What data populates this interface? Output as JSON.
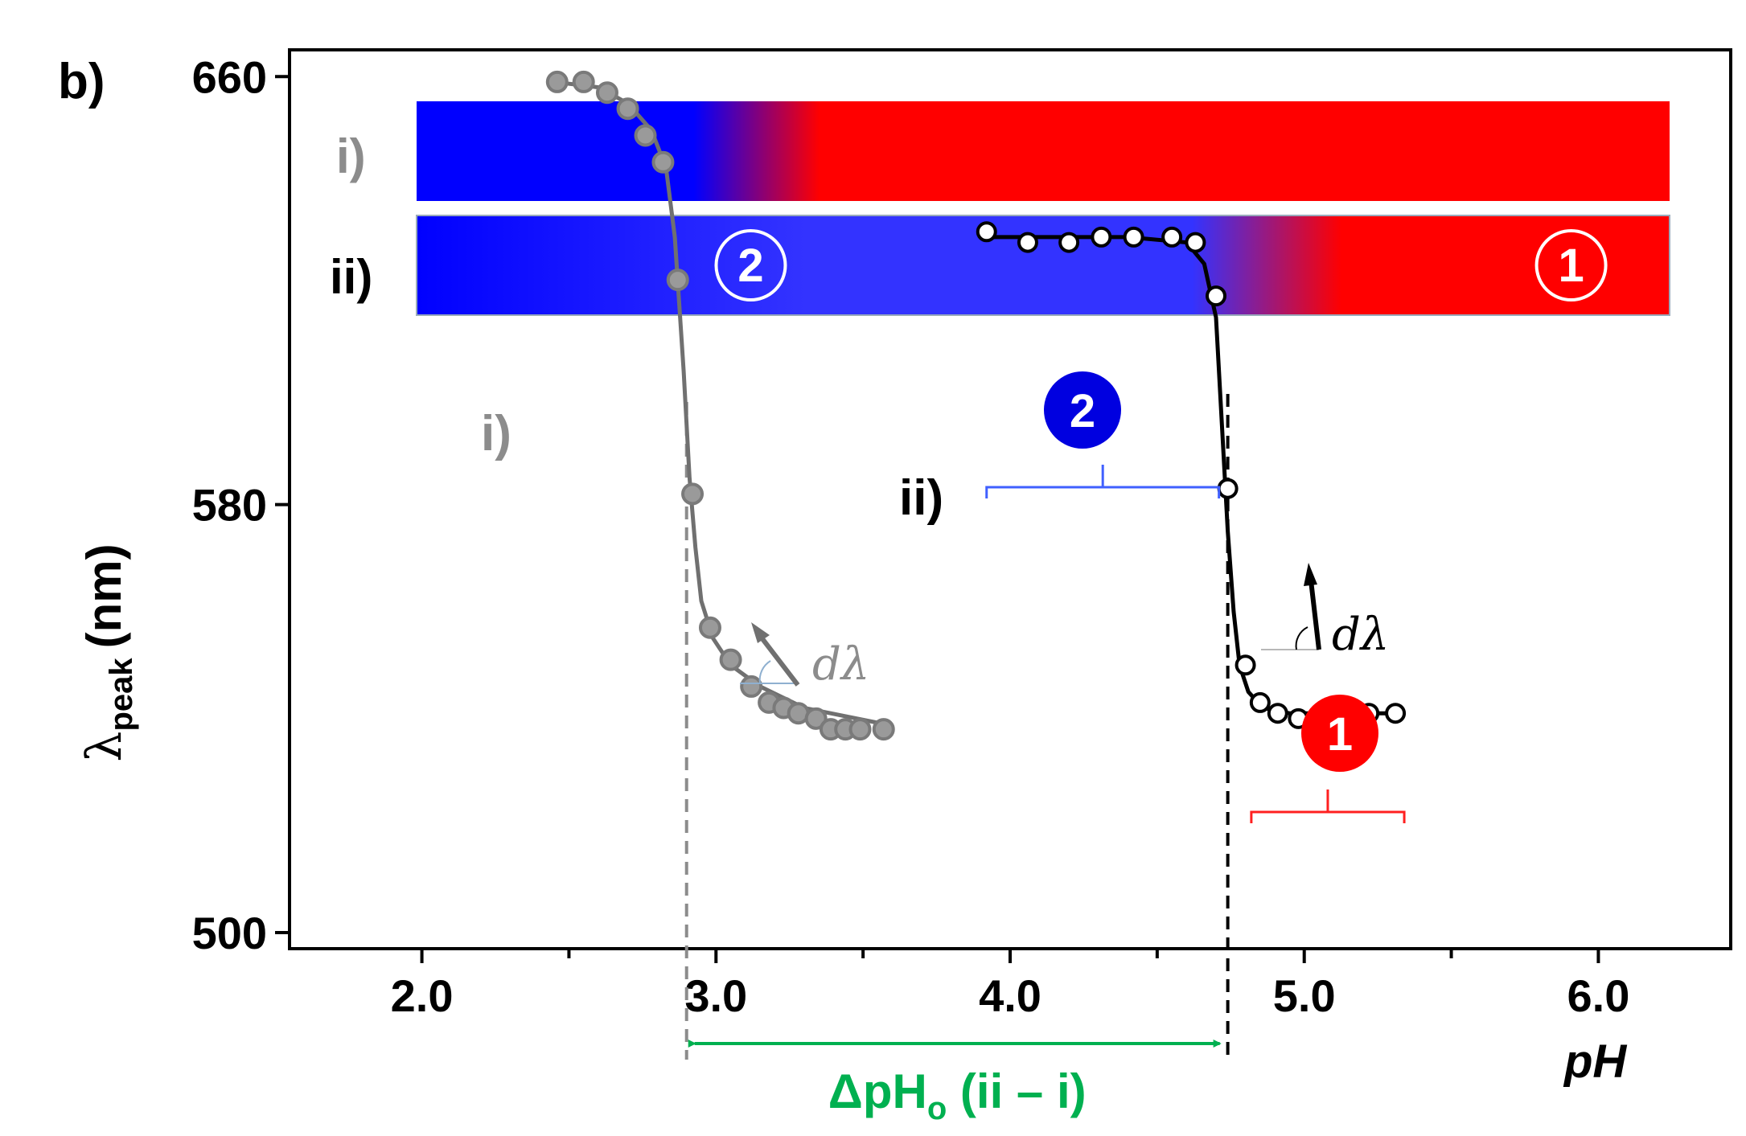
{
  "panel_label": "b)",
  "colors": {
    "blue": "#0000ff",
    "blue_light": "#3333ff",
    "red": "#ff0000",
    "gray": "#8c8c8c",
    "black": "#000000",
    "green": "#00b050",
    "bracket_blue": "#4060ff",
    "bracket_red": "#ff2020"
  },
  "color_bars": [
    {
      "label": "i)",
      "label_color": "#8c8c8c",
      "blue_until_ph": 2.93,
      "red_from_ph": 3.35
    },
    {
      "label": "ii)",
      "label_color": "#000000",
      "blue_until_ph": 4.6,
      "red_from_ph": 5.1,
      "badges": [
        {
          "text": "2",
          "ph": 3.12
        },
        {
          "text": "1",
          "ph": 5.87
        }
      ]
    }
  ],
  "chart_data": {
    "type": "scatter",
    "title": "",
    "ylabel_main": "λ",
    "ylabel_sub": "peak",
    "ylabel_unit": "(nm)",
    "xlabel": "pH",
    "xlim": [
      1.55,
      6.45
    ],
    "ylim": [
      497,
      665
    ],
    "x_ticks": [
      2.0,
      3.0,
      4.0,
      5.0,
      6.0
    ],
    "x_tick_labels": [
      "2.0",
      "3.0",
      "4.0",
      "5.0",
      "6.0"
    ],
    "x_minor_ticks": [
      2.5,
      3.5,
      4.5,
      5.5
    ],
    "y_ticks": [
      500,
      580,
      660
    ],
    "y_tick_labels": [
      "500",
      "580",
      "660"
    ],
    "series": [
      {
        "name": "i)",
        "color": "#8c8c8c",
        "marker": "filled",
        "x": [
          2.46,
          2.55,
          2.63,
          2.7,
          2.76,
          2.82,
          2.87,
          2.92,
          2.98,
          3.05,
          3.12,
          3.18,
          3.23,
          3.28,
          3.34,
          3.39,
          3.44,
          3.49,
          3.57
        ],
        "y": [
          659,
          659,
          657,
          654,
          649,
          644,
          622,
          582,
          557,
          551,
          546,
          543,
          542,
          541,
          540,
          538,
          538,
          538,
          538
        ],
        "fit_x": [
          2.45,
          2.6,
          2.7,
          2.78,
          2.83,
          2.86,
          2.89,
          2.91,
          2.93,
          2.95,
          2.99,
          3.05,
          3.15,
          3.3,
          3.57
        ],
        "fit_y": [
          659,
          658,
          655,
          650,
          643,
          630,
          605,
          585,
          572,
          562,
          555,
          550,
          546,
          542,
          539
        ],
        "annotation": "i)",
        "midpoint_ph": 2.9
      },
      {
        "name": "ii)",
        "color": "#000000",
        "marker": "open",
        "x": [
          3.92,
          4.06,
          4.2,
          4.31,
          4.42,
          4.55,
          4.63,
          4.7,
          4.74,
          4.8,
          4.85,
          4.91,
          4.98,
          5.06,
          5.13,
          5.22,
          5.31
        ],
        "y": [
          631,
          629,
          629,
          630,
          630,
          630,
          629,
          619,
          583,
          550,
          543,
          541,
          540,
          541,
          541,
          541,
          541
        ],
        "fit_x": [
          3.92,
          4.4,
          4.6,
          4.66,
          4.7,
          4.72,
          4.74,
          4.76,
          4.78,
          4.81,
          4.86,
          4.95,
          5.31
        ],
        "fit_y": [
          630,
          630,
          629,
          625,
          615,
          595,
          575,
          560,
          550,
          545,
          542,
          541,
          541
        ],
        "annotation": "ii)",
        "midpoint_ph": 4.74
      }
    ],
    "annotations": {
      "dlambda": "dλ",
      "delta_ph_main": "ΔpH",
      "delta_ph_sub": "o",
      "delta_ph_suffix": " (ii – i)",
      "delta_from_ph": 2.9,
      "delta_to_ph": 4.74,
      "badge_2": "2",
      "badge_1": "1",
      "bracket_2_ph": [
        3.92,
        4.71
      ],
      "bracket_1_ph": [
        4.82,
        5.34
      ]
    }
  }
}
